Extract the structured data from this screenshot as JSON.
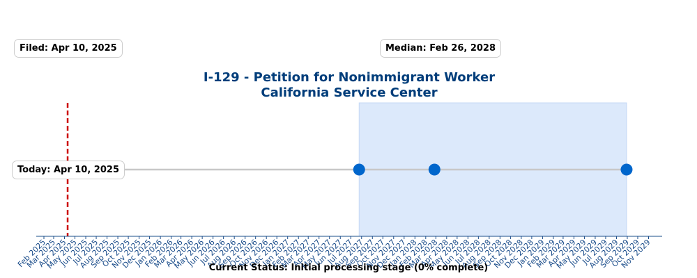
{
  "chart_data": {
    "type": "timeline",
    "title_line1": "I-129 - Petition for Nonimmigrant Worker",
    "title_line2": "California Service Center",
    "x_range": [
      "2025-01-10",
      "2029-12-10"
    ],
    "tick_labels": [
      "Feb 2025",
      "Mar 2025",
      "Apr 2025",
      "May 2025",
      "Jun 2025",
      "Jul 2025",
      "Aug 2025",
      "Sep 2025",
      "Oct 2025",
      "Nov 2025",
      "Dec 2025",
      "Jan 2026",
      "Feb 2026",
      "Mar 2026",
      "Apr 2026",
      "May 2026",
      "Jun 2026",
      "Jul 2026",
      "Aug 2026",
      "Sep 2026",
      "Oct 2026",
      "Nov 2026",
      "Dec 2026",
      "Jan 2027",
      "Feb 2027",
      "Mar 2027",
      "Apr 2027",
      "May 2027",
      "Jun 2027",
      "Jul 2027",
      "Aug 2027",
      "Sep 2027",
      "Oct 2027",
      "Nov 2027",
      "Dec 2027",
      "Jan 2028",
      "Feb 2028",
      "Mar 2028",
      "Apr 2028",
      "May 2028",
      "Jun 2028",
      "Jul 2028",
      "Aug 2028",
      "Sep 2028",
      "Oct 2028",
      "Nov 2028",
      "Dec 2028",
      "Jan 2029",
      "Feb 2029",
      "Mar 2029",
      "Apr 2029",
      "May 2029",
      "Jun 2029",
      "Jul 2029",
      "Aug 2029",
      "Sep 2029",
      "Oct 2029",
      "Nov 2029"
    ],
    "today": "2025-04-10",
    "shaded_range": [
      "2027-07-25",
      "2029-08-30"
    ],
    "points": [
      {
        "date": "2025-04-10",
        "color": "#b0c4de"
      },
      {
        "date": "2027-07-25",
        "color": "#0066cc"
      },
      {
        "date": "2028-02-26",
        "color": "#0066cc"
      },
      {
        "date": "2029-08-30",
        "color": "#0066cc"
      }
    ],
    "colors": {
      "title": "#003d7a",
      "today_line": "#cc0000",
      "shade": "#dce9fb",
      "timeline": "#c8c8c8",
      "axis": "#1a4c8a",
      "tick_label": "#1a4c8a"
    }
  },
  "annotations": {
    "filed": "Filed: Apr 10, 2025",
    "median": "Median: Feb 26, 2028",
    "today": "Today: Apr 10, 2025"
  },
  "status": "Current Status: Initial processing stage (0% complete)"
}
